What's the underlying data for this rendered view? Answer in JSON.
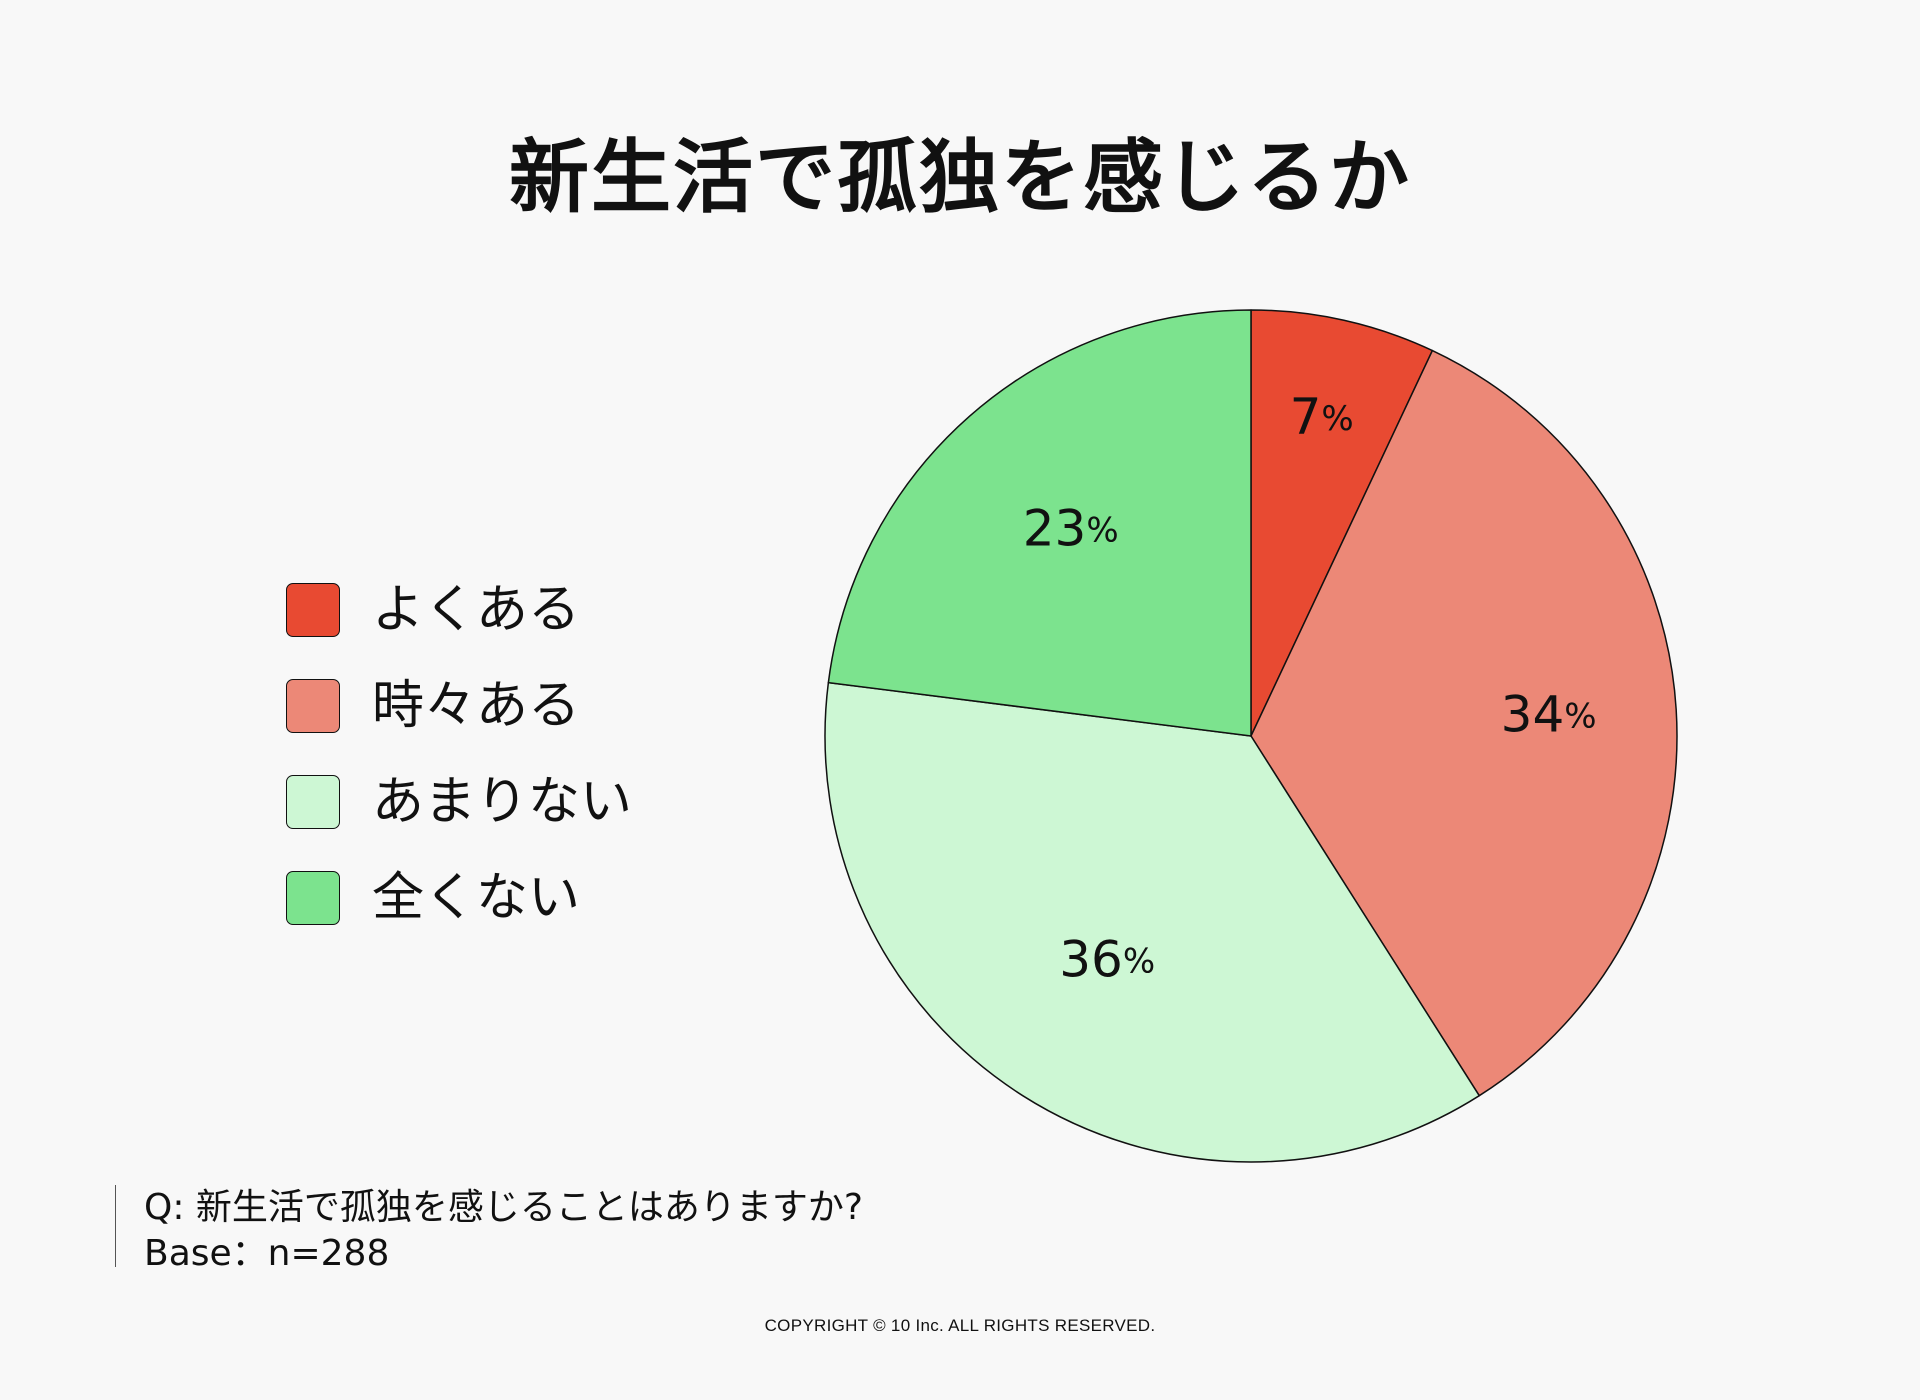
{
  "colors": {
    "background": "#f8f8f8",
    "outline": "#111111"
  },
  "chart_data": {
    "type": "pie",
    "title": "新生活で孤独を感じるか",
    "categories": [
      "よくある",
      "時々ある",
      "あまりない",
      "全くない"
    ],
    "values": [
      7,
      34,
      36,
      23
    ],
    "data_labels": [
      "7",
      "34",
      "36",
      "23"
    ],
    "unit_label": "%",
    "colors": [
      "#e84a32",
      "#ec8877",
      "#cdf7d4",
      "#7ce38e"
    ],
    "start_angle_deg": 0,
    "direction": "clockwise",
    "legend_position": "left",
    "grid": false
  },
  "note": {
    "question": "Q: 新生活で孤独を感じることはありますか?",
    "base": "Base：n=288"
  },
  "footer": {
    "copyright": "COPYRIGHT © 10 Inc. ALL RIGHTS RESERVED."
  }
}
